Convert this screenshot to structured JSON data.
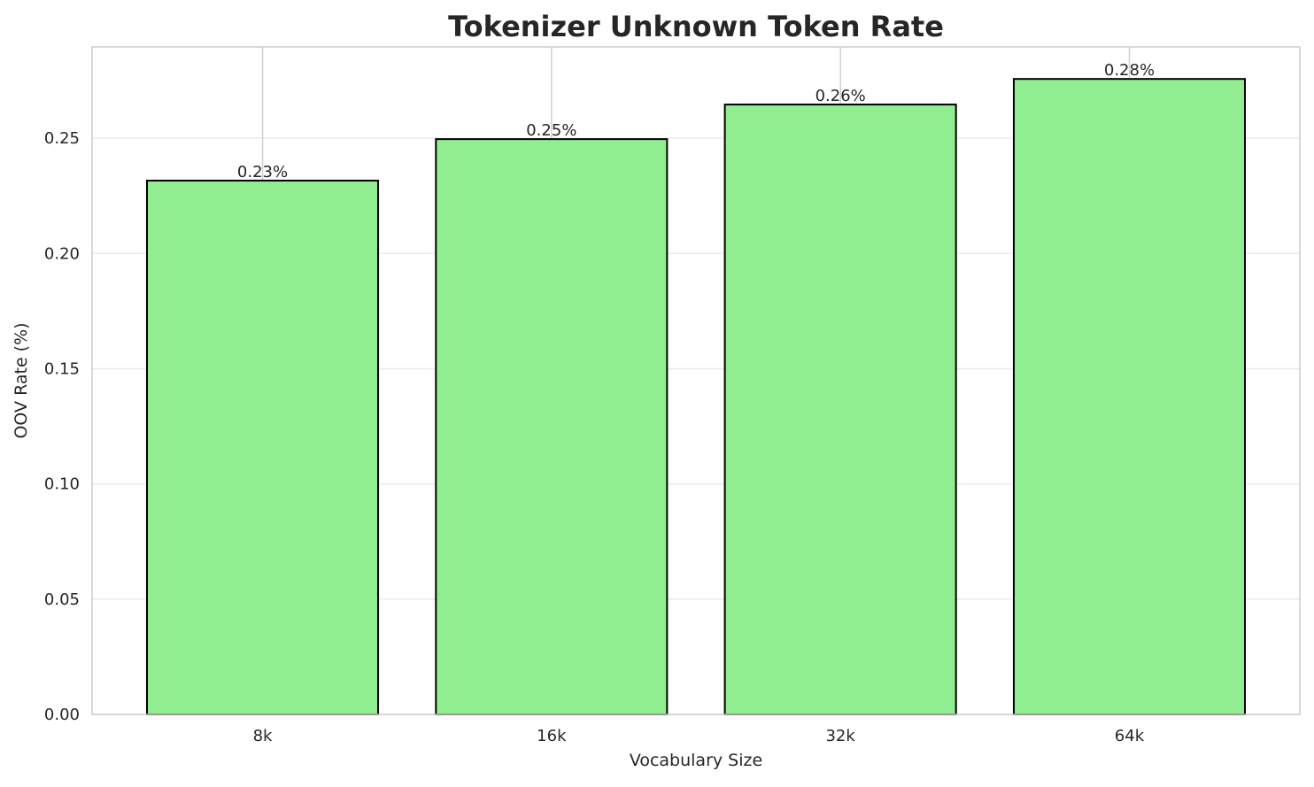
{
  "chart_data": {
    "type": "bar",
    "title": "Tokenizer Unknown Token Rate",
    "xlabel": "Vocabulary Size",
    "ylabel": "OOV Rate (%)",
    "categories": [
      "8k",
      "16k",
      "32k",
      "64k"
    ],
    "values": [
      0.2316,
      0.2496,
      0.2646,
      0.2757
    ],
    "data_labels": [
      "0.23%",
      "0.25%",
      "0.26%",
      "0.28%"
    ],
    "ylim": [
      0,
      0.2896
    ],
    "yticks": [
      0.0,
      0.05,
      0.1,
      0.15,
      0.2,
      0.25
    ],
    "ytick_labels": [
      "0.00",
      "0.05",
      "0.10",
      "0.15",
      "0.20",
      "0.25"
    ],
    "grid": true,
    "bar_color": "#90ee90",
    "edge_color": "#000000"
  }
}
